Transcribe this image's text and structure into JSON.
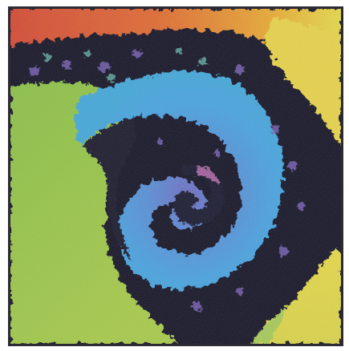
{
  "image": {
    "subject": "fractal-spiral",
    "colors": {
      "red": "#d8553a",
      "orange": "#e28a2e",
      "yellow": "#e6d44a",
      "green": "#9fc24b",
      "teal": "#56a7a6",
      "blue": "#4aa0df",
      "purple": "#7b6cc0",
      "dark": "#151525"
    }
  }
}
